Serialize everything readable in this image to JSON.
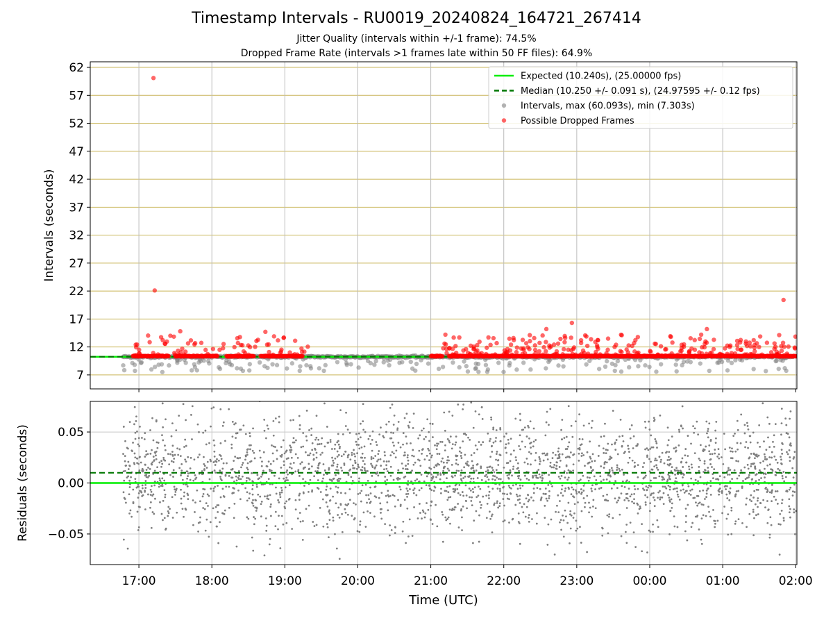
{
  "header": {
    "title": "Timestamp Intervals - RU0019_20240824_164721_267414",
    "subtitle1": "Jitter Quality (intervals within +/-1 frame): 74.5%",
    "subtitle2": "Dropped Frame Rate (intervals >1 frames late within 50 FF files): 64.9%"
  },
  "chart_data": [
    {
      "type": "scatter",
      "title": "Timestamp Intervals - RU0019_20240824_164721_267414",
      "xlabel": "",
      "ylabel": "Intervals (seconds)",
      "ylim": [
        4.5,
        63
      ],
      "yticks": [
        7,
        12,
        17,
        22,
        27,
        32,
        37,
        42,
        47,
        52,
        57,
        62
      ],
      "xticks": [
        "17:00",
        "18:00",
        "19:00",
        "20:00",
        "21:00",
        "22:00",
        "23:00",
        "00:00",
        "01:00",
        "02:00"
      ],
      "xlim_hours_utc": [
        "16:20",
        "02:01"
      ],
      "grid": true,
      "legend_position": "top-right",
      "legend": [
        "Expected (10.240s), (25.00000 fps)",
        "Median (10.250 +/- 0.091 s), (24.97595 +/- 0.12 fps)",
        "Intervals, max (60.093s), min (7.303s)",
        "Possible Dropped Frames"
      ],
      "series": [
        {
          "name": "Expected (10.240s), (25.00000 fps)",
          "kind": "hline",
          "y": 10.24,
          "color": "#00ee00"
        },
        {
          "name": "Median (10.250 +/- 0.091 s), (24.97595 +/- 0.12 fps)",
          "kind": "hline-dashed",
          "y": 10.25,
          "color": "#007700"
        },
        {
          "name": "Intervals, max (60.093s), min (7.303s)",
          "kind": "points",
          "color": "#808080",
          "x_range": [
            "16:47",
            "01:58"
          ],
          "typical": 10.24,
          "max": 60.093,
          "min": 7.303
        },
        {
          "name": "Possible Dropped Frames",
          "kind": "points",
          "color": "#ff0000",
          "notable_points": [
            {
              "x": "17:12",
              "y": 60.1
            },
            {
              "x": "17:13",
              "y": 22.1
            },
            {
              "x": "01:50",
              "y": 20.4
            },
            {
              "x": "22:56",
              "y": 16.3
            },
            {
              "x": "17:34",
              "y": 14.8
            },
            {
              "x": "18:44",
              "y": 14.7
            },
            {
              "x": "21:12",
              "y": 14.2
            },
            {
              "x": "23:37",
              "y": 14.1
            },
            {
              "x": "00:47",
              "y": 15.2
            },
            {
              "x": "22:35",
              "y": 15.2
            }
          ]
        }
      ]
    },
    {
      "type": "scatter",
      "xlabel": "Time (UTC)",
      "ylabel": "Residuals (seconds)",
      "ylim": [
        -0.08,
        0.08
      ],
      "yticks": [
        -0.05,
        0.0,
        0.05
      ],
      "ytick_labels": [
        "−0.05",
        "0.00",
        "0.05"
      ],
      "xticks": [
        "17:00",
        "18:00",
        "19:00",
        "20:00",
        "21:00",
        "22:00",
        "23:00",
        "00:00",
        "01:00",
        "02:00"
      ],
      "grid": true,
      "series": [
        {
          "name": "",
          "kind": "hline",
          "y": 0.0,
          "color": "#00ee00"
        },
        {
          "name": "",
          "kind": "hline-dashed",
          "y": 0.01,
          "color": "#007700"
        },
        {
          "name": "",
          "kind": "points",
          "color": "#808080",
          "x_range": [
            "16:47",
            "02:01"
          ],
          "spread": 0.08
        }
      ]
    }
  ]
}
